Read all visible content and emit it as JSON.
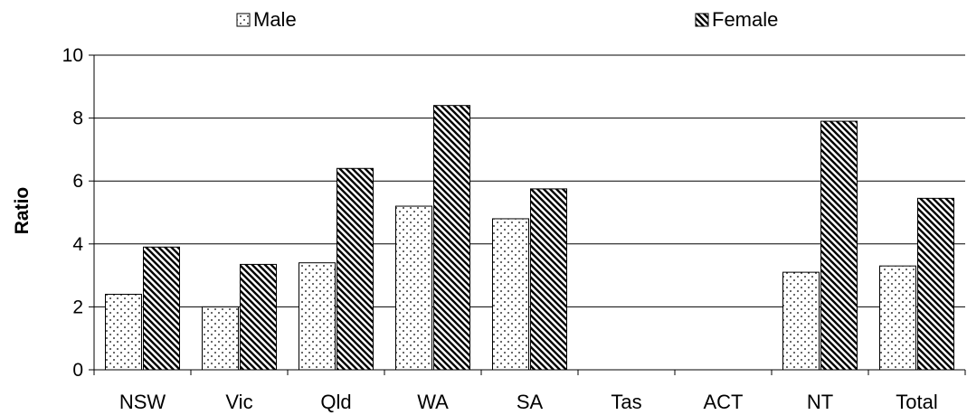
{
  "chart_data": {
    "type": "bar",
    "title": "",
    "xlabel": "",
    "ylabel": "Ratio",
    "ylim": [
      0,
      10
    ],
    "yticks": [
      0,
      2,
      4,
      6,
      8,
      10
    ],
    "grid": true,
    "legend_position": "top",
    "categories": [
      "NSW",
      "Vic",
      "Qld",
      "WA",
      "SA",
      "Tas",
      "ACT",
      "NT",
      "Total"
    ],
    "series": [
      {
        "name": "Male",
        "pattern": "dotted",
        "values": [
          2.4,
          2.0,
          3.4,
          5.2,
          4.8,
          null,
          null,
          3.1,
          3.3
        ]
      },
      {
        "name": "Female",
        "pattern": "diagonal-hatch",
        "values": [
          3.9,
          3.35,
          6.4,
          8.4,
          5.75,
          null,
          null,
          7.9,
          5.45
        ]
      }
    ]
  }
}
